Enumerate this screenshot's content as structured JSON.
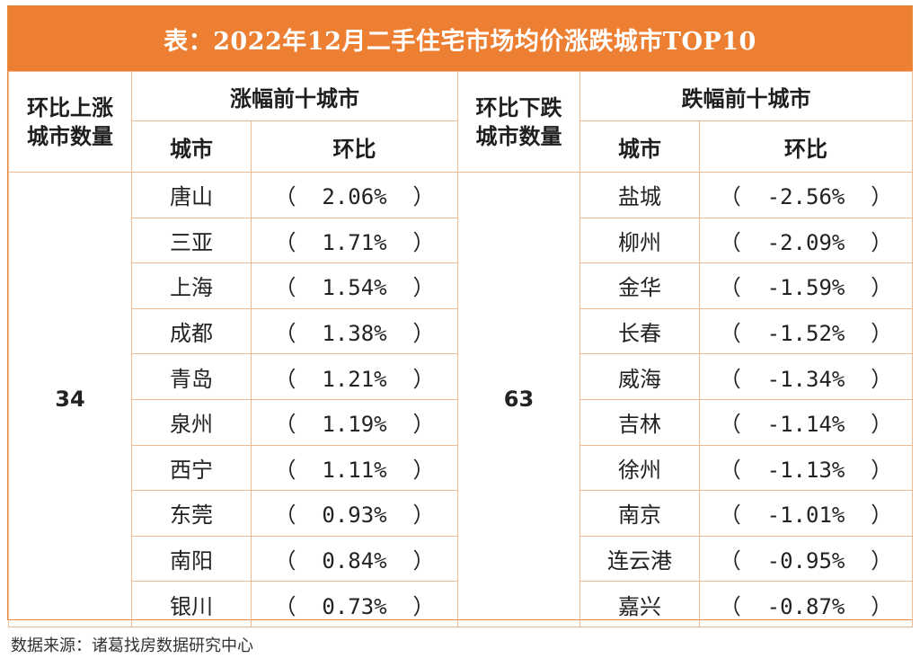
{
  "title": "表：2022年12月二手住宅市场均价涨跌城市TOP10",
  "left": {
    "count_header": "环比上涨城市数量",
    "count_header_lines": [
      "环比上涨",
      "城市数量"
    ],
    "count": "34",
    "group_header": "涨幅前十城市",
    "col_city": "城市",
    "col_change": "环比",
    "rows": [
      {
        "city": "唐山",
        "change": "2.06%"
      },
      {
        "city": "三亚",
        "change": "1.71%"
      },
      {
        "city": "上海",
        "change": "1.54%"
      },
      {
        "city": "成都",
        "change": "1.38%"
      },
      {
        "city": "青岛",
        "change": "1.21%"
      },
      {
        "city": "泉州",
        "change": "1.19%"
      },
      {
        "city": "西宁",
        "change": "1.11%"
      },
      {
        "city": "东莞",
        "change": "0.93%"
      },
      {
        "city": "南阳",
        "change": "0.84%"
      },
      {
        "city": "银川",
        "change": "0.73%"
      }
    ]
  },
  "right": {
    "count_header": "环比下跌城市数量",
    "count_header_lines": [
      "环比下跌",
      "城市数量"
    ],
    "count": "63",
    "group_header": "跌幅前十城市",
    "col_city": "城市",
    "col_change": "环比",
    "rows": [
      {
        "city": "盐城",
        "change": "-2.56%"
      },
      {
        "city": "柳州",
        "change": "-2.09%"
      },
      {
        "city": "金华",
        "change": "-1.59%"
      },
      {
        "city": "长春",
        "change": "-1.52%"
      },
      {
        "city": "威海",
        "change": "-1.34%"
      },
      {
        "city": "吉林",
        "change": "-1.14%"
      },
      {
        "city": "徐州",
        "change": "-1.13%"
      },
      {
        "city": "南京",
        "change": "-1.01%"
      },
      {
        "city": "连云港",
        "change": "-0.95%"
      },
      {
        "city": "嘉兴",
        "change": "-0.87%"
      }
    ]
  },
  "source": "数据来源：诸葛找房数据研究中心",
  "colors": {
    "header_bg": "#ec7f32",
    "border": "#f0b891"
  }
}
